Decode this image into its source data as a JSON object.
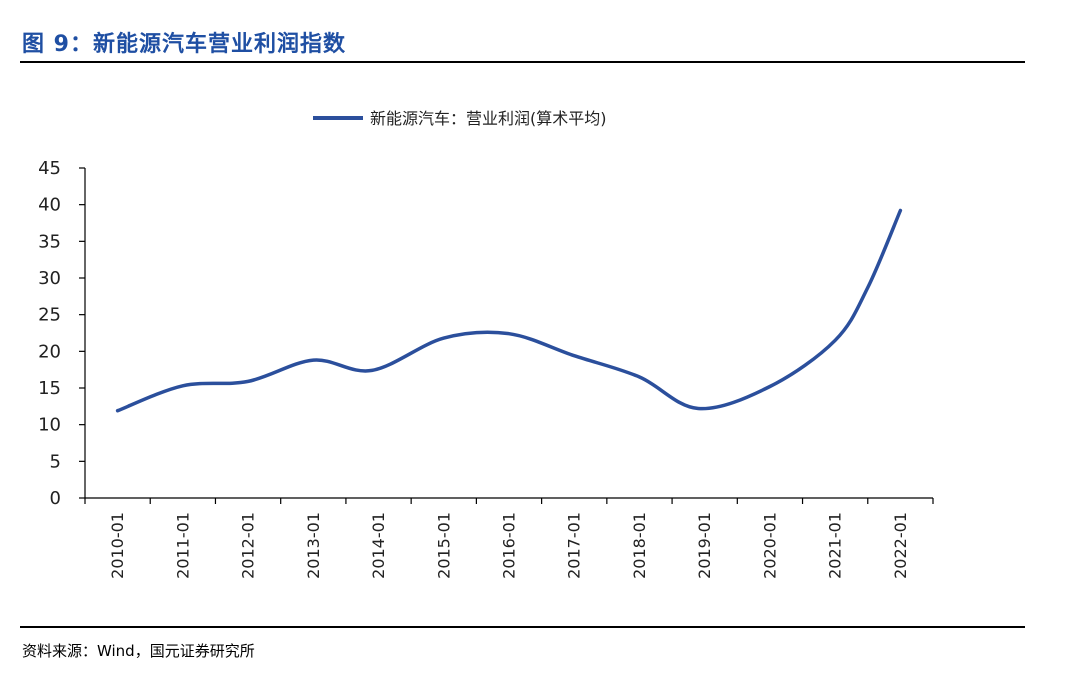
{
  "figure": {
    "title": "图 9：新能源汽车营业利润指数",
    "source": "资料来源：Wind，国元证券研究所"
  },
  "chart_data": {
    "type": "line",
    "title": "",
    "xlabel": "",
    "ylabel": "",
    "categories": [
      "2010-01",
      "2011-01",
      "2012-01",
      "2013-01",
      "2014-01",
      "2015-01",
      "2016-01",
      "2017-01",
      "2018-01",
      "2019-01",
      "2020-01",
      "2021-01",
      "2022-01"
    ],
    "y_ticks": [
      0,
      5,
      10,
      15,
      20,
      25,
      30,
      35,
      40,
      45
    ],
    "ylim": [
      0,
      45
    ],
    "grid": false,
    "legend_position": "top-center",
    "series": [
      {
        "name": "新能源汽车：营业利润(算术平均)",
        "color": "#2b4f9c",
        "x": [
          0,
          1,
          2,
          3,
          3.9,
          5,
          6,
          7,
          8,
          8.9,
          10,
          11,
          11.5,
          12
        ],
        "values": [
          11.9,
          15.3,
          15.9,
          18.8,
          17.4,
          21.8,
          22.4,
          19.4,
          16.5,
          12.2,
          15.2,
          21.5,
          28.7,
          39.2
        ]
      }
    ]
  }
}
